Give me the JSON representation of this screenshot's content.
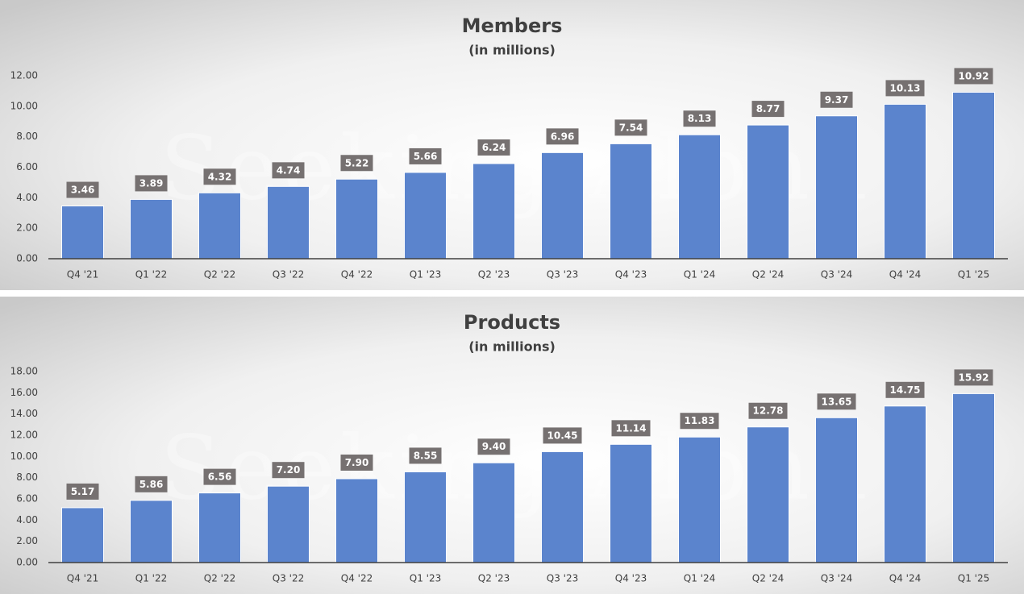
{
  "chart_data": [
    {
      "type": "bar",
      "title": "Members",
      "subtitle": "(in millions)",
      "watermark": "Seeking Alpha",
      "categories": [
        "Q4 '21",
        "Q1 '22",
        "Q2 '22",
        "Q3 '22",
        "Q4 '22",
        "Q1 '23",
        "Q2 '23",
        "Q3 '23",
        "Q4 '23",
        "Q1 '24",
        "Q2 '24",
        "Q3 '24",
        "Q4 '24",
        "Q1 '25"
      ],
      "values": [
        3.46,
        3.89,
        4.32,
        4.74,
        5.22,
        5.66,
        6.24,
        6.96,
        7.54,
        8.13,
        8.77,
        9.37,
        10.13,
        10.92
      ],
      "value_labels": [
        "3.46",
        "3.89",
        "4.32",
        "4.74",
        "5.22",
        "5.66",
        "6.24",
        "6.96",
        "7.54",
        "8.13",
        "8.77",
        "9.37",
        "10.13",
        "10.92"
      ],
      "color": "#5b84cd",
      "ylim": [
        0,
        12
      ],
      "yticks": [
        {
          "value": 0,
          "label": "0.00"
        },
        {
          "value": 2,
          "label": "2.00"
        },
        {
          "value": 4,
          "label": "4.00"
        },
        {
          "value": 6,
          "label": "6.00"
        },
        {
          "value": 8,
          "label": "8.00"
        },
        {
          "value": 10,
          "label": "10.00"
        },
        {
          "value": 12,
          "label": "12.00"
        }
      ]
    },
    {
      "type": "bar",
      "title": "Products",
      "subtitle": "(in millions)",
      "watermark": "Seeking Alpha",
      "categories": [
        "Q4 '21",
        "Q1 '22",
        "Q2 '22",
        "Q3 '22",
        "Q4 '22",
        "Q1 '23",
        "Q2 '23",
        "Q3 '23",
        "Q4 '23",
        "Q1 '24",
        "Q2 '24",
        "Q3 '24",
        "Q4 '24",
        "Q1 '25"
      ],
      "values": [
        5.17,
        5.86,
        6.56,
        7.2,
        7.9,
        8.55,
        9.4,
        10.45,
        11.14,
        11.83,
        12.78,
        13.65,
        14.75,
        15.92
      ],
      "value_labels": [
        "5.17",
        "5.86",
        "6.56",
        "7.20",
        "7.90",
        "8.55",
        "9.40",
        "10.45",
        "11.14",
        "11.83",
        "12.78",
        "13.65",
        "14.75",
        "15.92"
      ],
      "color": "#5b84cd",
      "ylim": [
        0,
        18
      ],
      "yticks": [
        {
          "value": 0,
          "label": "0.00"
        },
        {
          "value": 2,
          "label": "2.00"
        },
        {
          "value": 4,
          "label": "4.00"
        },
        {
          "value": 6,
          "label": "6.00"
        },
        {
          "value": 8,
          "label": "8.00"
        },
        {
          "value": 10,
          "label": "10.00"
        },
        {
          "value": 12,
          "label": "12.00"
        },
        {
          "value": 14,
          "label": "14.00"
        },
        {
          "value": 16,
          "label": "16.00"
        },
        {
          "value": 18,
          "label": "18.00"
        }
      ]
    }
  ]
}
